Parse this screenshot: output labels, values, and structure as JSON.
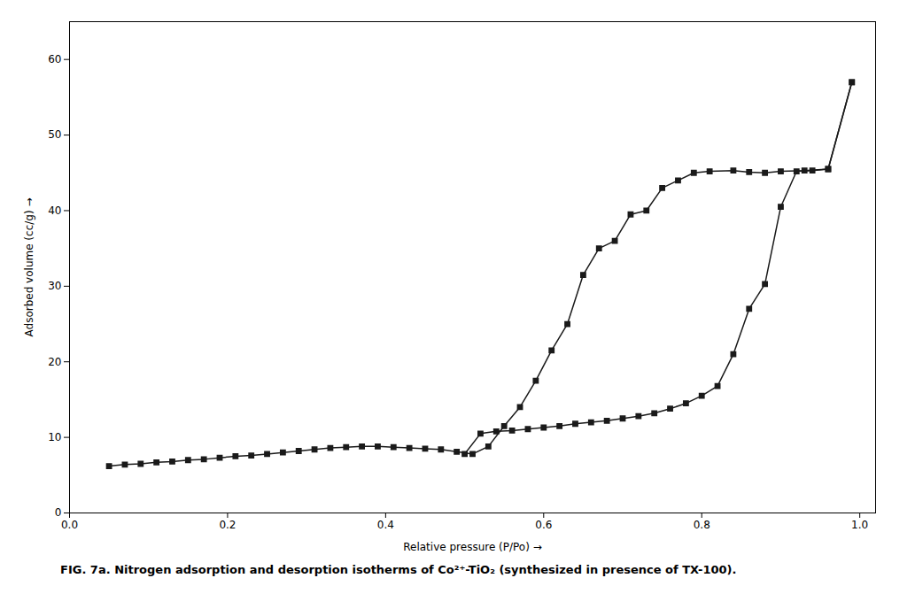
{
  "chart_data": {
    "type": "line",
    "caption": "FIG. 7a. Nitrogen adsorption and desorption isotherms of Co²⁺-TiO₂ (synthesized in presence of TX-100).",
    "xlabel": "Relative pressure (P/Po)",
    "ylabel": "Adsorbed volume (cc/g)",
    "series": [
      {
        "x": [
          0.05,
          0.07,
          0.09,
          0.11,
          0.13,
          0.15,
          0.17,
          0.19,
          0.21,
          0.23,
          0.25,
          0.27,
          0.29,
          0.31,
          0.33,
          0.35,
          0.37,
          0.39,
          0.41,
          0.43,
          0.45,
          0.47,
          0.49,
          0.51,
          0.53,
          0.55,
          0.57,
          0.59,
          0.61,
          0.63,
          0.65,
          0.67,
          0.69,
          0.71,
          0.73,
          0.75,
          0.77,
          0.79,
          0.81,
          0.84,
          0.86,
          0.88,
          0.9,
          0.93,
          0.96,
          0.99
        ],
        "values": [
          6.2,
          6.4,
          6.5,
          6.7,
          6.8,
          7.0,
          7.1,
          7.3,
          7.5,
          7.6,
          7.8,
          8.0,
          8.2,
          8.4,
          8.6,
          8.7,
          8.8,
          8.8,
          8.7,
          8.6,
          8.5,
          8.4,
          8.1,
          7.8,
          8.8,
          11.5,
          14.0,
          17.5,
          21.5,
          25.0,
          31.5,
          35.0,
          36.0,
          39.5,
          40.0,
          43.0,
          44.0,
          45.0,
          45.2,
          45.3,
          45.1,
          45.0,
          45.2,
          45.3,
          45.5,
          57.0
        ],
        "color": "#1a1a1a",
        "marker": "square"
      },
      {
        "x": [
          0.99,
          0.96,
          0.94,
          0.92,
          0.9,
          0.88,
          0.86,
          0.84,
          0.82,
          0.8,
          0.78,
          0.76,
          0.74,
          0.72,
          0.7,
          0.68,
          0.66,
          0.64,
          0.62,
          0.6,
          0.58,
          0.56,
          0.54,
          0.52,
          0.5
        ],
        "values": [
          57.0,
          45.5,
          45.3,
          45.2,
          40.5,
          30.3,
          27.0,
          21.0,
          16.8,
          15.5,
          14.5,
          13.8,
          13.2,
          12.8,
          12.5,
          12.2,
          12.0,
          11.8,
          11.5,
          11.3,
          11.1,
          10.9,
          10.8,
          10.5,
          7.8
        ],
        "color": "#1a1a1a",
        "marker": "square"
      }
    ],
    "xlim": [
      0.0,
      1.02
    ],
    "ylim": [
      0,
      65
    ],
    "xticks": [
      {
        "value": 0.0,
        "label": "0.0"
      },
      0.2,
      0.4,
      0.6,
      0.8,
      {
        "value": 1.0,
        "label": "1.0"
      }
    ],
    "yticks": [
      0,
      10,
      20,
      30,
      40,
      50,
      60
    ],
    "grid": false
  }
}
